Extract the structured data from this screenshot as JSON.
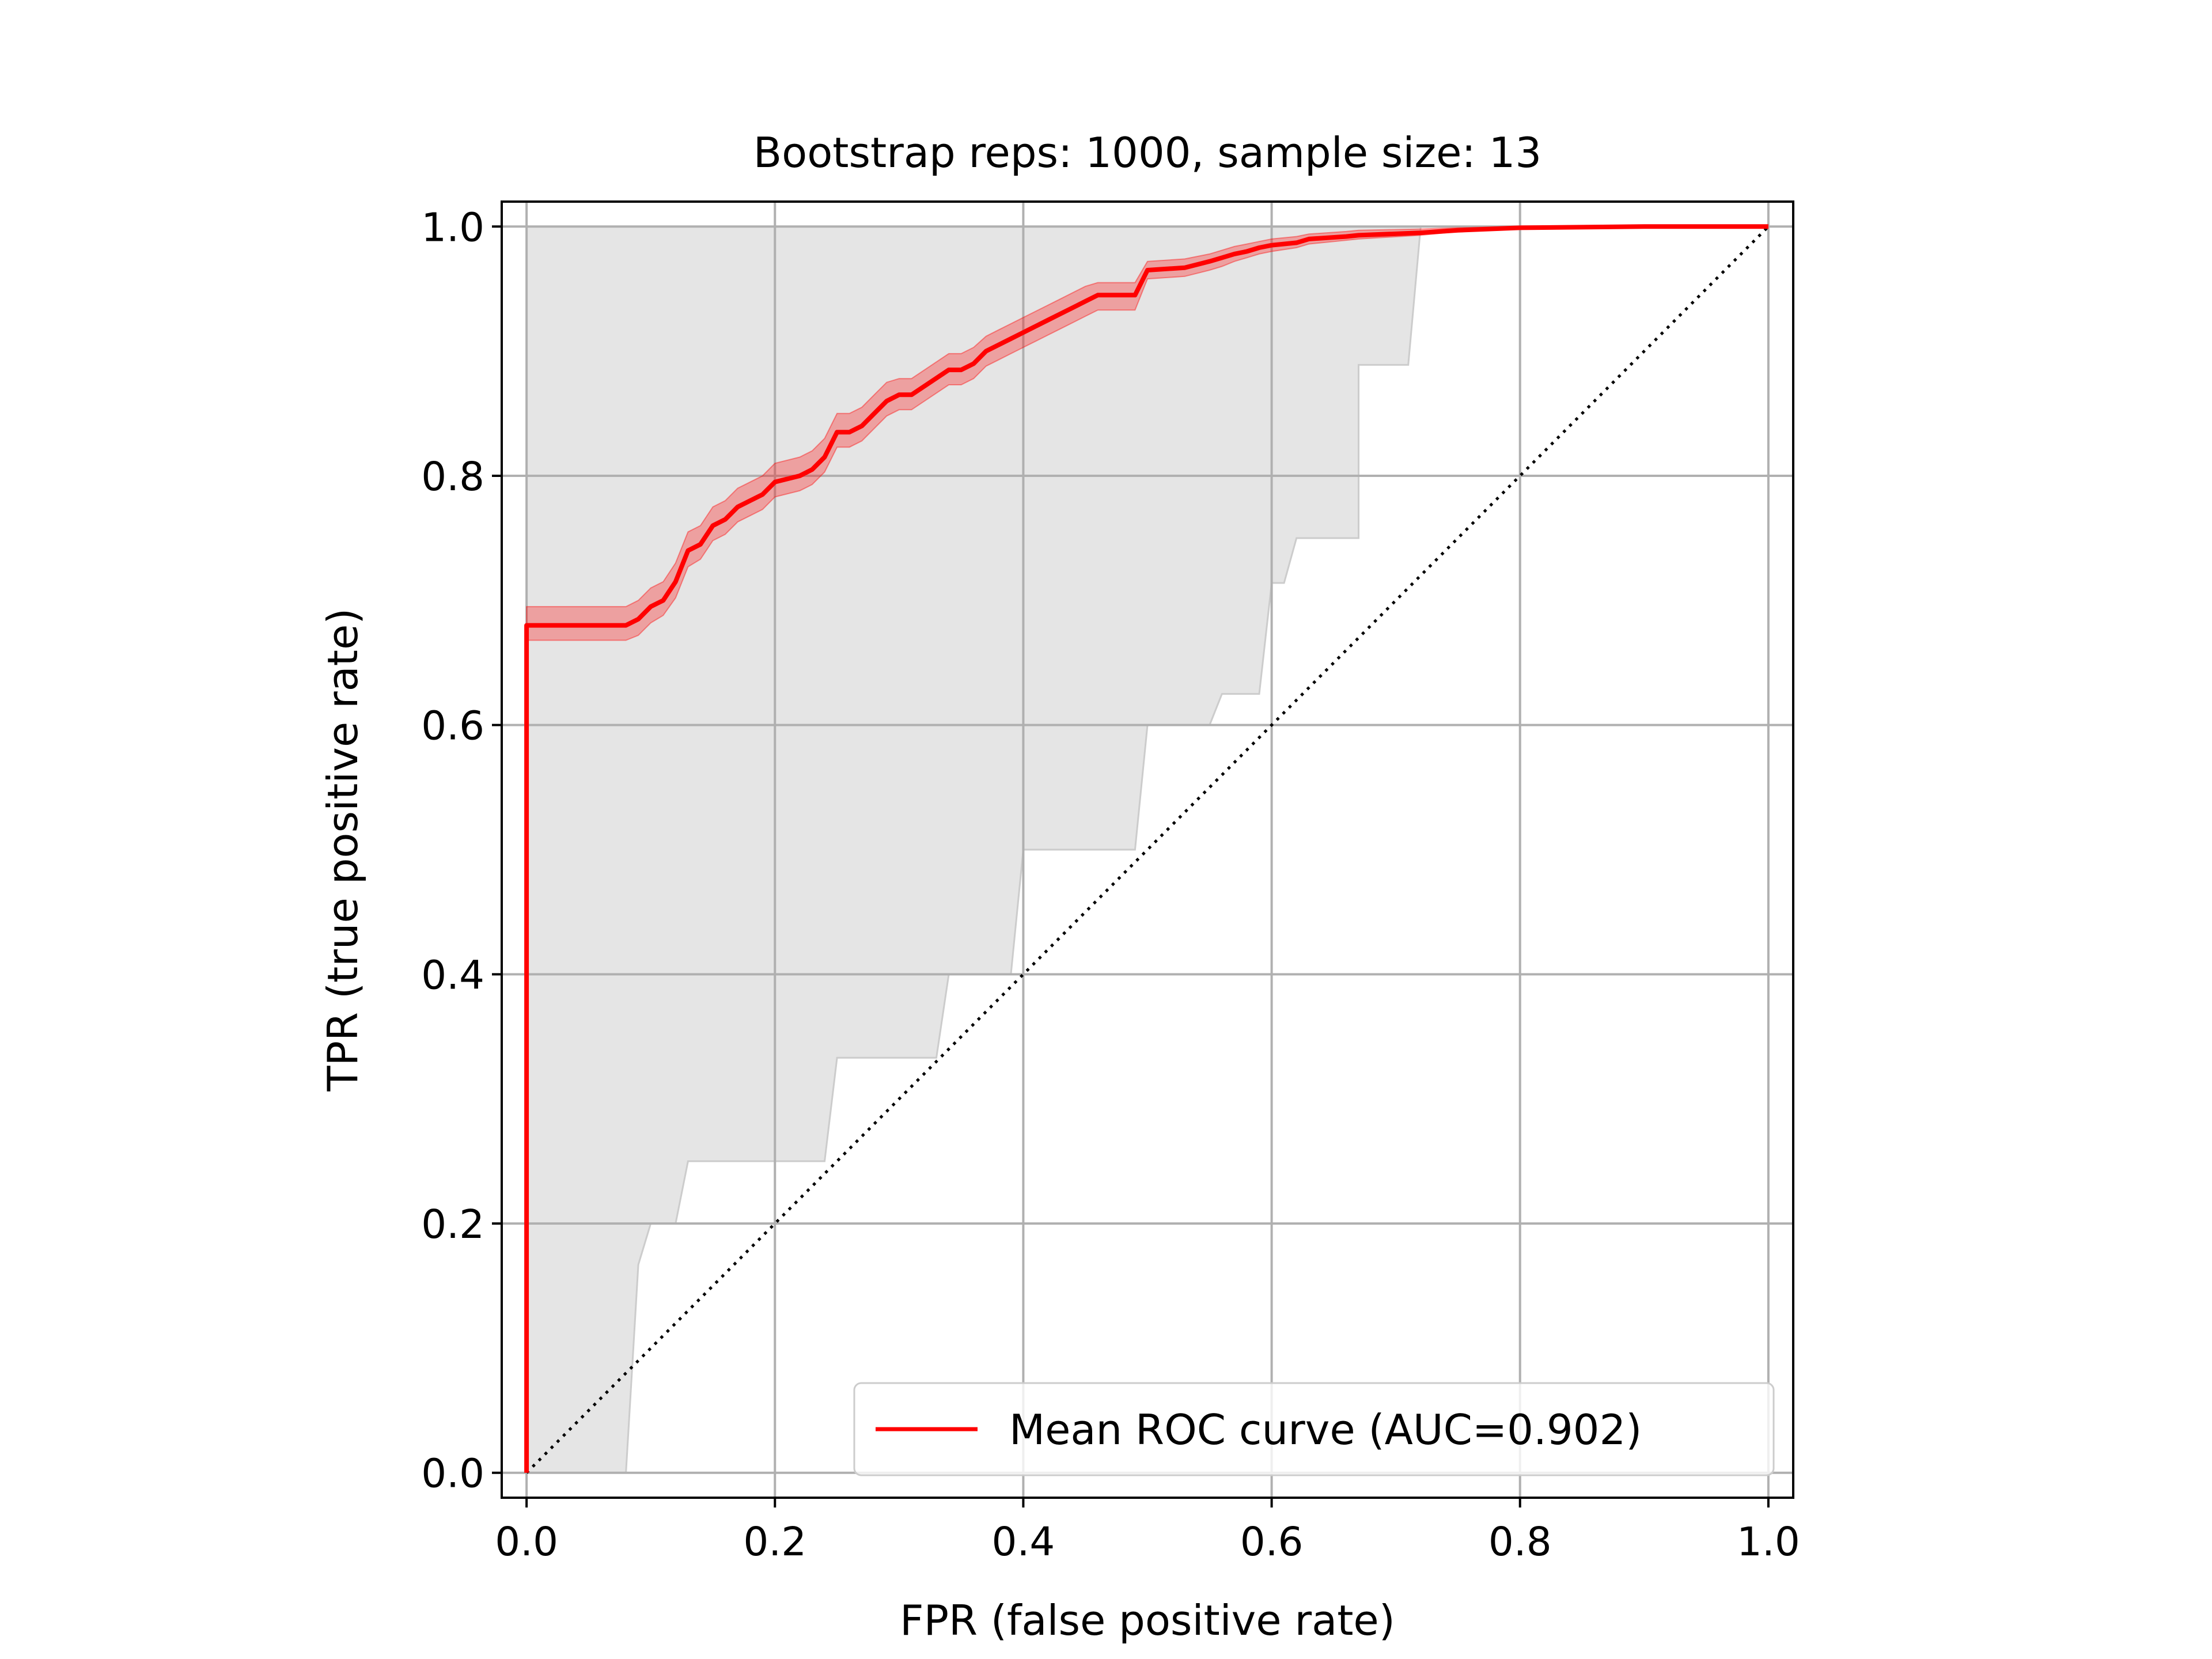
{
  "chart_data": {
    "type": "line",
    "title": "Bootstrap reps: 1000, sample size: 13",
    "xlabel": "FPR (false positive rate)",
    "ylabel": "TPR (true positive rate)",
    "xlim": [
      -0.02,
      1.02
    ],
    "ylim": [
      -0.02,
      1.02
    ],
    "xticks": [
      0.0,
      0.2,
      0.4,
      0.6,
      0.8,
      1.0
    ],
    "xtick_labels": [
      "0.0",
      "0.2",
      "0.4",
      "0.6",
      "0.8",
      "1.0"
    ],
    "yticks": [
      0.0,
      0.2,
      0.4,
      0.6,
      0.8,
      1.0
    ],
    "ytick_labels": [
      "0.0",
      "0.2",
      "0.4",
      "0.6",
      "0.8",
      "1.0"
    ],
    "grid": true,
    "legend": {
      "placement": "lower-right",
      "entries": [
        "Mean ROC curve (AUC=0.902)"
      ]
    },
    "colors": {
      "mean": "#ff0000",
      "band": "#e5e5e5",
      "band_edge": "#cccccc",
      "grid": "#b0b0b0"
    },
    "series": [
      {
        "name": "Mean ROC curve (AUC=0.902)",
        "x": [
          0.0,
          0.0,
          0.08,
          0.09,
          0.1,
          0.11,
          0.12,
          0.13,
          0.14,
          0.15,
          0.16,
          0.17,
          0.18,
          0.19,
          0.2,
          0.22,
          0.23,
          0.24,
          0.25,
          0.26,
          0.27,
          0.28,
          0.29,
          0.3,
          0.31,
          0.34,
          0.35,
          0.36,
          0.37,
          0.38,
          0.39,
          0.4,
          0.41,
          0.42,
          0.43,
          0.44,
          0.45,
          0.46,
          0.49,
          0.5,
          0.53,
          0.55,
          0.56,
          0.57,
          0.58,
          0.59,
          0.6,
          0.62,
          0.63,
          0.66,
          0.67,
          0.72,
          0.75,
          0.8,
          0.9,
          1.0
        ],
        "y": [
          0.0,
          0.68,
          0.68,
          0.685,
          0.695,
          0.7,
          0.715,
          0.74,
          0.745,
          0.76,
          0.765,
          0.775,
          0.78,
          0.785,
          0.795,
          0.8,
          0.805,
          0.815,
          0.835,
          0.835,
          0.84,
          0.85,
          0.86,
          0.865,
          0.865,
          0.885,
          0.885,
          0.89,
          0.9,
          0.905,
          0.91,
          0.915,
          0.92,
          0.925,
          0.93,
          0.935,
          0.94,
          0.945,
          0.945,
          0.965,
          0.967,
          0.972,
          0.975,
          0.978,
          0.98,
          0.983,
          0.985,
          0.987,
          0.99,
          0.992,
          0.993,
          0.995,
          0.997,
          0.999,
          1.0,
          1.0
        ]
      }
    ],
    "mean_band": {
      "lower": [
        0.0,
        0.668,
        0.668,
        0.672,
        0.682,
        0.688,
        0.702,
        0.727,
        0.733,
        0.748,
        0.753,
        0.763,
        0.768,
        0.773,
        0.783,
        0.788,
        0.793,
        0.803,
        0.823,
        0.823,
        0.828,
        0.838,
        0.848,
        0.853,
        0.853,
        0.873,
        0.873,
        0.878,
        0.888,
        0.893,
        0.898,
        0.903,
        0.908,
        0.913,
        0.918,
        0.923,
        0.928,
        0.933,
        0.933,
        0.958,
        0.96,
        0.965,
        0.968,
        0.972,
        0.975,
        0.978,
        0.98,
        0.983,
        0.986,
        0.989,
        0.99,
        0.993,
        0.996,
        0.998,
        1.0,
        1.0
      ],
      "upper": [
        0.0,
        0.695,
        0.695,
        0.7,
        0.71,
        0.715,
        0.73,
        0.755,
        0.76,
        0.775,
        0.78,
        0.79,
        0.795,
        0.8,
        0.81,
        0.815,
        0.82,
        0.83,
        0.85,
        0.85,
        0.855,
        0.865,
        0.875,
        0.878,
        0.878,
        0.898,
        0.898,
        0.903,
        0.912,
        0.917,
        0.922,
        0.927,
        0.932,
        0.937,
        0.942,
        0.947,
        0.952,
        0.955,
        0.955,
        0.972,
        0.974,
        0.978,
        0.981,
        0.984,
        0.986,
        0.988,
        0.99,
        0.992,
        0.994,
        0.996,
        0.997,
        0.998,
        0.999,
        1.0,
        1.0,
        1.0
      ]
    },
    "ci_band": {
      "upper_x": [
        0.0,
        0.72,
        0.72,
        1.0
      ],
      "upper_y": [
        1.0,
        1.0,
        1.0,
        1.0
      ],
      "lower_x": [
        0.0,
        0.08,
        0.08,
        0.09,
        0.1,
        0.12,
        0.13,
        0.24,
        0.25,
        0.33,
        0.34,
        0.39,
        0.4,
        0.49,
        0.5,
        0.55,
        0.56,
        0.59,
        0.6,
        0.61,
        0.62,
        0.64,
        0.65,
        0.67,
        0.67,
        0.71,
        0.72,
        1.0
      ],
      "lower_y": [
        0.0,
        0.0,
        0.0,
        0.167,
        0.2,
        0.2,
        0.25,
        0.25,
        0.333,
        0.333,
        0.4,
        0.4,
        0.5,
        0.5,
        0.6,
        0.6,
        0.625,
        0.625,
        0.714,
        0.714,
        0.75,
        0.75,
        0.75,
        0.75,
        0.889,
        0.889,
        1.0,
        1.0
      ]
    },
    "chance_line": {
      "x": [
        0.0,
        1.0
      ],
      "y": [
        0.0,
        1.0
      ],
      "style": "dotted"
    }
  }
}
